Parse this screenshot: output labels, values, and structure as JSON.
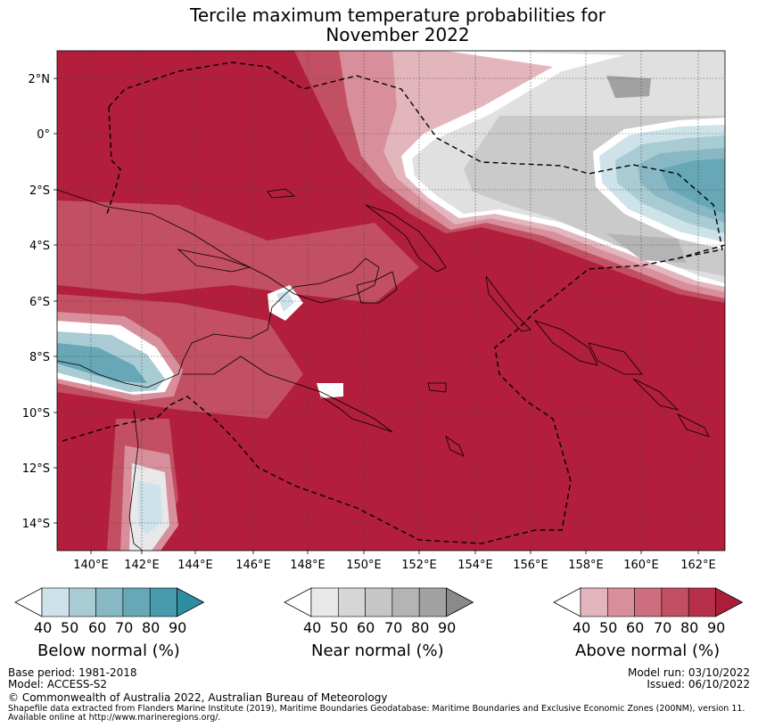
{
  "title": {
    "line1": "Tercile maximum temperature probabilities for",
    "line2": "November 2022"
  },
  "map": {
    "lat_labels": [
      "2°N",
      "0°",
      "2°S",
      "4°S",
      "6°S",
      "8°S",
      "10°S",
      "12°S",
      "14°S"
    ],
    "lon_labels": [
      "140°E",
      "142°E",
      "144°E",
      "146°E",
      "148°E",
      "150°E",
      "152°E",
      "154°E",
      "156°E",
      "158°E",
      "160°E",
      "162°E"
    ]
  },
  "colorbars": [
    {
      "label": "Below normal (%)",
      "ticks": [
        "40",
        "50",
        "60",
        "70",
        "80",
        "90"
      ],
      "colors": [
        "#cde3e9",
        "#a9cbd3",
        "#88b8c3",
        "#67a7b6",
        "#479aab",
        "#2f8da0"
      ],
      "name": "below"
    },
    {
      "label": "Near normal (%)",
      "ticks": [
        "40",
        "50",
        "60",
        "70",
        "80",
        "90"
      ],
      "colors": [
        "#e8e8e8",
        "#d6d6d6",
        "#c6c6c6",
        "#b4b4b4",
        "#a2a2a2",
        "#8a8a8a"
      ],
      "name": "near"
    },
    {
      "label": "Above normal (%)",
      "ticks": [
        "40",
        "50",
        "60",
        "70",
        "80",
        "90"
      ],
      "colors": [
        "#e3b5bd",
        "#d88f9b",
        "#cc6e7d",
        "#c24f62",
        "#b7304a",
        "#aa1e3b"
      ],
      "name": "above"
    }
  ],
  "footer": {
    "base_period": "Base period: 1981-2018",
    "model": "Model: ACCESS-S2",
    "model_run": "Model run: 03/10/2022",
    "issued": "Issued: 06/10/2022",
    "copyright": "© Commonwealth of Australia 2022, Australian Bureau of Meteorology",
    "shapefile1": "Shapefile data extracted from Flanders Marine Institute (2019), Maritime Boundaries Geodatabase: Maritime Boundaries and Exclusive Economic Zones (200NM), version 11.",
    "shapefile2": "Available online at http://www.marineregions.org/."
  }
}
